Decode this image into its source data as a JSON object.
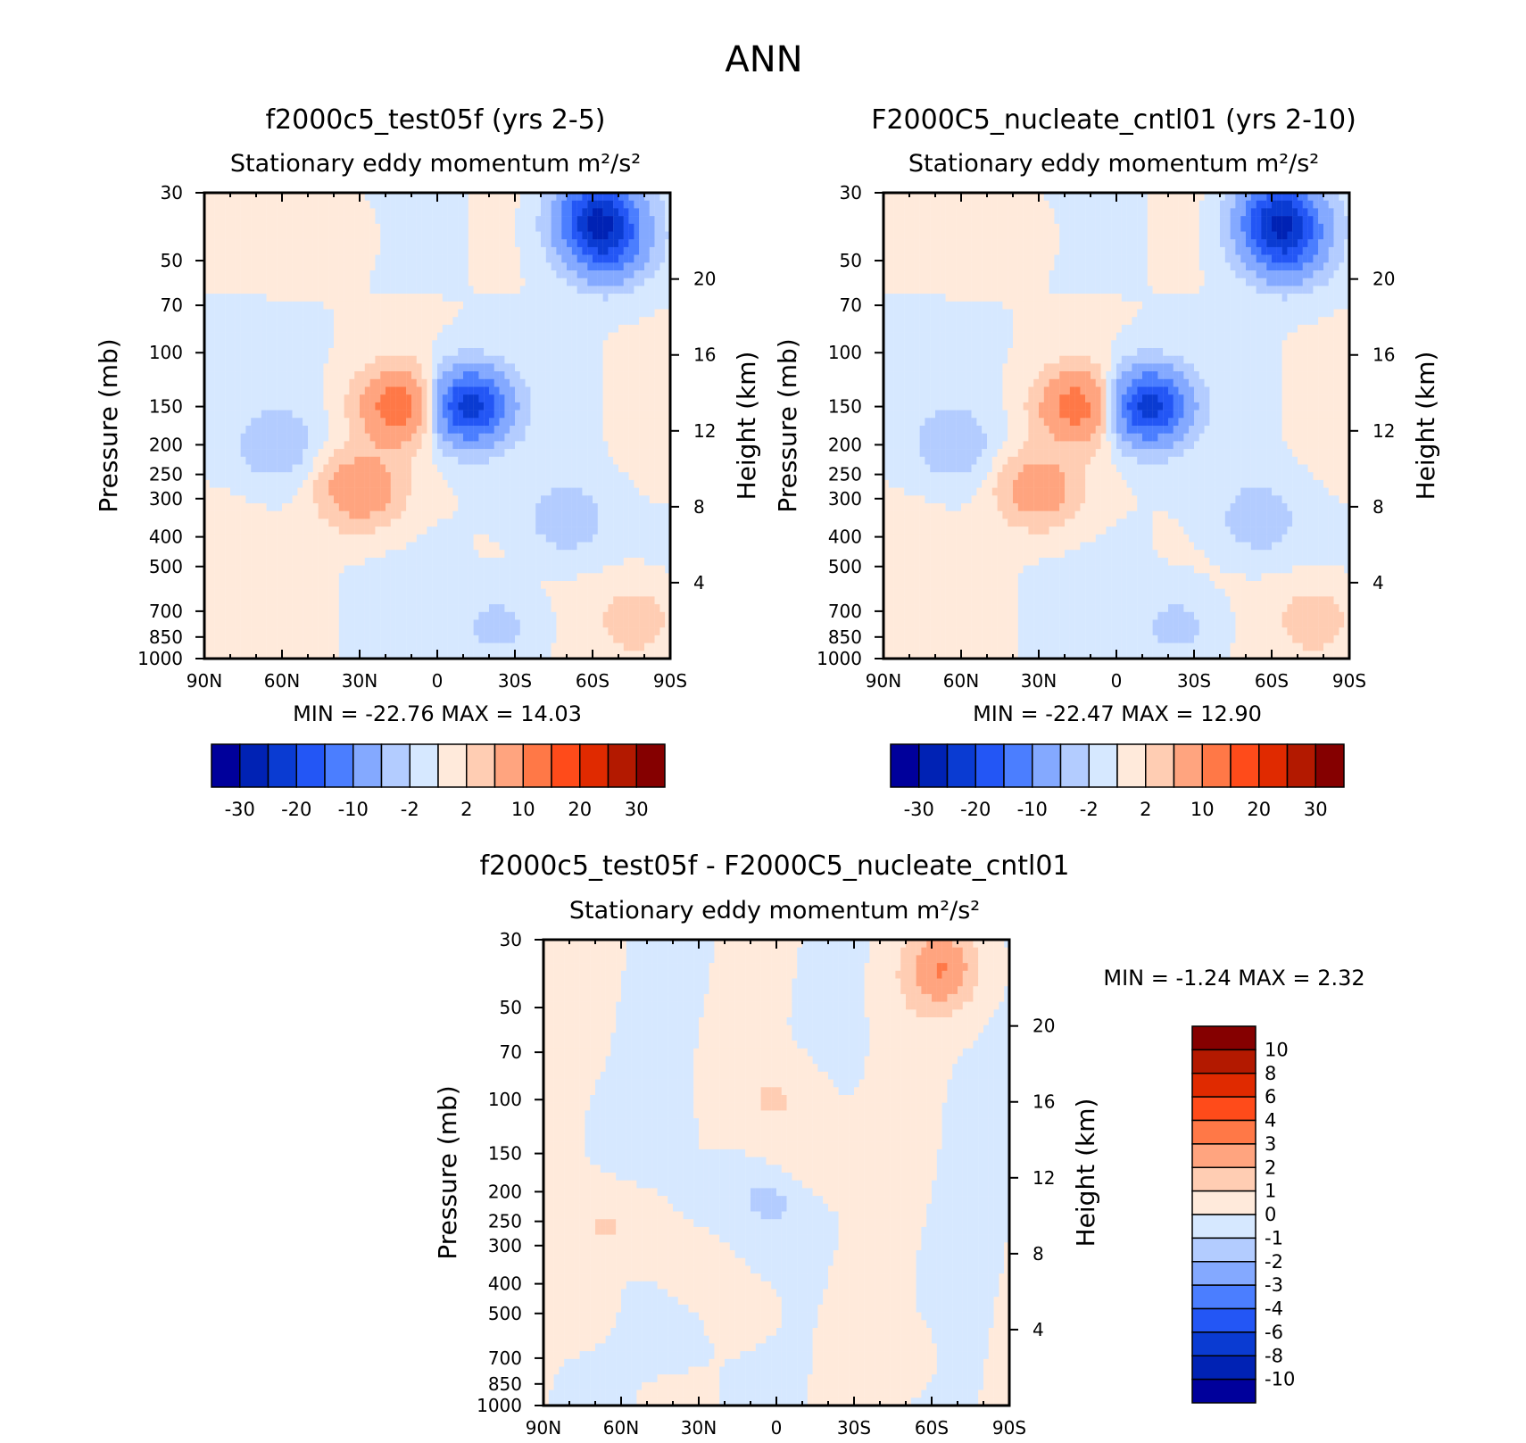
{
  "figure": {
    "title": "ANN",
    "colors": {
      "abs": [
        "#00009b",
        "#0022b4",
        "#0a3bd2",
        "#2356f5",
        "#4b7eff",
        "#84a9ff",
        "#b3ccff",
        "#d6e8ff",
        "#ffeadb",
        "#ffcdb3",
        "#ffa47f",
        "#ff7847",
        "#ff4b1a",
        "#e02a00",
        "#b31900",
        "#850000"
      ],
      "diff": [
        "#00009b",
        "#0022b4",
        "#0a3bd2",
        "#2356f5",
        "#4b7eff",
        "#84a9ff",
        "#b3ccff",
        "#d6e8ff",
        "#ffeadb",
        "#ffcdb3",
        "#ffa47f",
        "#ff7847",
        "#ff4b1a",
        "#e02a00",
        "#b31900",
        "#850000"
      ]
    }
  },
  "chart_data": [
    {
      "type": "heatmap",
      "id": "p1",
      "title": "f2000c5_test05f (yrs 2-5)",
      "subtitle": "Stationary eddy momentum",
      "units": "m²/s²",
      "xlabel": "",
      "ylabel": "Pressure (mb)",
      "y2label": "Height (km)",
      "x_ticks": [
        "90N",
        "60N",
        "30N",
        "0",
        "30S",
        "60S",
        "90S"
      ],
      "x_values": [
        90,
        60,
        30,
        0,
        -30,
        -60,
        -90
      ],
      "y_ticks": [
        "30",
        "50",
        "70",
        "100",
        "150",
        "200",
        "250",
        "300",
        "400",
        "500",
        "700",
        "850",
        "1000"
      ],
      "y_values": [
        30,
        50,
        70,
        100,
        150,
        200,
        250,
        300,
        400,
        500,
        700,
        850,
        1000
      ],
      "y2_ticks": [
        "20",
        "16",
        "12",
        "8",
        "4"
      ],
      "y2_values": [
        20,
        16,
        12,
        8,
        4
      ],
      "min_label": "MIN =",
      "min": "-22.76",
      "max_label": "MAX =",
      "max": "14.03",
      "colorbar_levels": [
        -30,
        -25,
        -20,
        -15,
        -10,
        -5,
        -2,
        0,
        2,
        5,
        10,
        15,
        20,
        25,
        30
      ],
      "colorbar_labels": [
        "-30",
        "-20",
        "-10",
        "-2",
        "2",
        "10",
        "20",
        "30"
      ],
      "features": [
        {
          "lat": -12,
          "p": 150,
          "value": -22.76
        },
        {
          "lat": 14,
          "p": 150,
          "value": 14.03
        },
        {
          "lat": 30,
          "p": 280,
          "value": 9
        },
        {
          "lat": -65,
          "p": 45,
          "value": -14
        },
        {
          "lat": -62,
          "p": 35,
          "value": -20
        },
        {
          "lat": 62,
          "p": 200,
          "value": -4
        },
        {
          "lat": -50,
          "p": 350,
          "value": -4
        },
        {
          "lat": -77,
          "p": 750,
          "value": 4
        },
        {
          "lat": -24,
          "p": 780,
          "value": -3
        },
        {
          "lat": 82,
          "p": 400,
          "value": 1
        },
        {
          "lat": 40,
          "p": 40,
          "value": 1
        }
      ]
    },
    {
      "type": "heatmap",
      "id": "p2",
      "title": "F2000C5_nucleate_cntl01 (yrs 2-10)",
      "subtitle": "Stationary eddy momentum",
      "units": "m²/s²",
      "xlabel": "",
      "ylabel": "Pressure (mb)",
      "y2label": "Height (km)",
      "x_ticks": [
        "90N",
        "60N",
        "30N",
        "0",
        "30S",
        "60S",
        "90S"
      ],
      "x_values": [
        90,
        60,
        30,
        0,
        -30,
        -60,
        -90
      ],
      "y_ticks": [
        "30",
        "50",
        "70",
        "100",
        "150",
        "200",
        "250",
        "300",
        "400",
        "500",
        "700",
        "850",
        "1000"
      ],
      "y_values": [
        30,
        50,
        70,
        100,
        150,
        200,
        250,
        300,
        400,
        500,
        700,
        850,
        1000
      ],
      "y2_ticks": [
        "20",
        "16",
        "12",
        "8",
        "4"
      ],
      "y2_values": [
        20,
        16,
        12,
        8,
        4
      ],
      "min_label": "MIN =",
      "min": "-22.47",
      "max_label": "MAX =",
      "max": "12.90",
      "colorbar_levels": [
        -30,
        -25,
        -20,
        -15,
        -10,
        -5,
        -2,
        0,
        2,
        5,
        10,
        15,
        20,
        25,
        30
      ],
      "colorbar_labels": [
        "-30",
        "-20",
        "-10",
        "-2",
        "2",
        "10",
        "20",
        "30"
      ],
      "features": [
        {
          "lat": -12,
          "p": 150,
          "value": -22.47
        },
        {
          "lat": 14,
          "p": 150,
          "value": 12.9
        },
        {
          "lat": 30,
          "p": 280,
          "value": 8
        },
        {
          "lat": -65,
          "p": 45,
          "value": -14
        },
        {
          "lat": -63,
          "p": 35,
          "value": -19
        },
        {
          "lat": 63,
          "p": 200,
          "value": -4
        },
        {
          "lat": -55,
          "p": 350,
          "value": -4
        },
        {
          "lat": -77,
          "p": 750,
          "value": 4
        },
        {
          "lat": -24,
          "p": 780,
          "value": -3
        },
        {
          "lat": 82,
          "p": 400,
          "value": 1
        },
        {
          "lat": 40,
          "p": 40,
          "value": 1
        }
      ]
    },
    {
      "type": "heatmap",
      "id": "p3",
      "title": "f2000c5_test05f - F2000C5_nucleate_cntl01",
      "subtitle": "Stationary eddy momentum",
      "units": "m²/s²",
      "xlabel": "",
      "ylabel": "Pressure (mb)",
      "y2label": "Height (km)",
      "x_ticks": [
        "90N",
        "60N",
        "30N",
        "0",
        "30S",
        "60S",
        "90S"
      ],
      "x_values": [
        90,
        60,
        30,
        0,
        -30,
        -60,
        -90
      ],
      "y_ticks": [
        "30",
        "50",
        "70",
        "100",
        "150",
        "200",
        "250",
        "300",
        "400",
        "500",
        "700",
        "850",
        "1000"
      ],
      "y_values": [
        30,
        50,
        70,
        100,
        150,
        200,
        250,
        300,
        400,
        500,
        700,
        850,
        1000
      ],
      "y2_ticks": [
        "20",
        "16",
        "12",
        "8",
        "4"
      ],
      "y2_values": [
        20,
        16,
        12,
        8,
        4
      ],
      "min_label": "MIN =",
      "min": "-1.24",
      "max_label": "MAX =",
      "max": "2.32",
      "colorbar_levels": [
        -10,
        -8,
        -6,
        -4,
        -3,
        -2,
        -1,
        0,
        1,
        2,
        3,
        4,
        6,
        8,
        10
      ],
      "colorbar_labels": [
        "10",
        "8",
        "6",
        "4",
        "3",
        "2",
        "1",
        "0",
        "-1",
        "-2",
        "-3",
        "-4",
        "-6",
        "-8",
        "-10"
      ],
      "features": [
        {
          "lat": -64,
          "p": 35,
          "value": 2.32
        },
        {
          "lat": -62,
          "p": 45,
          "value": 1.2
        },
        {
          "lat": 65,
          "p": 260,
          "value": 1.2
        },
        {
          "lat": 0,
          "p": 100,
          "value": 1.1
        },
        {
          "lat": -11,
          "p": 165,
          "value": 1.1
        },
        {
          "lat": 0,
          "p": 210,
          "value": -1.24
        },
        {
          "lat": 52,
          "p": 120,
          "value": -0.5
        },
        {
          "lat": 20,
          "p": 200,
          "value": -0.5
        },
        {
          "lat": 40,
          "p": 600,
          "value": -0.4
        },
        {
          "lat": -35,
          "p": 160,
          "value": 0.4
        },
        {
          "lat": -45,
          "p": 700,
          "value": 0.5
        },
        {
          "lat": 75,
          "p": 500,
          "value": 0.4
        },
        {
          "lat": 10,
          "p": 500,
          "value": 0.3
        }
      ]
    }
  ]
}
